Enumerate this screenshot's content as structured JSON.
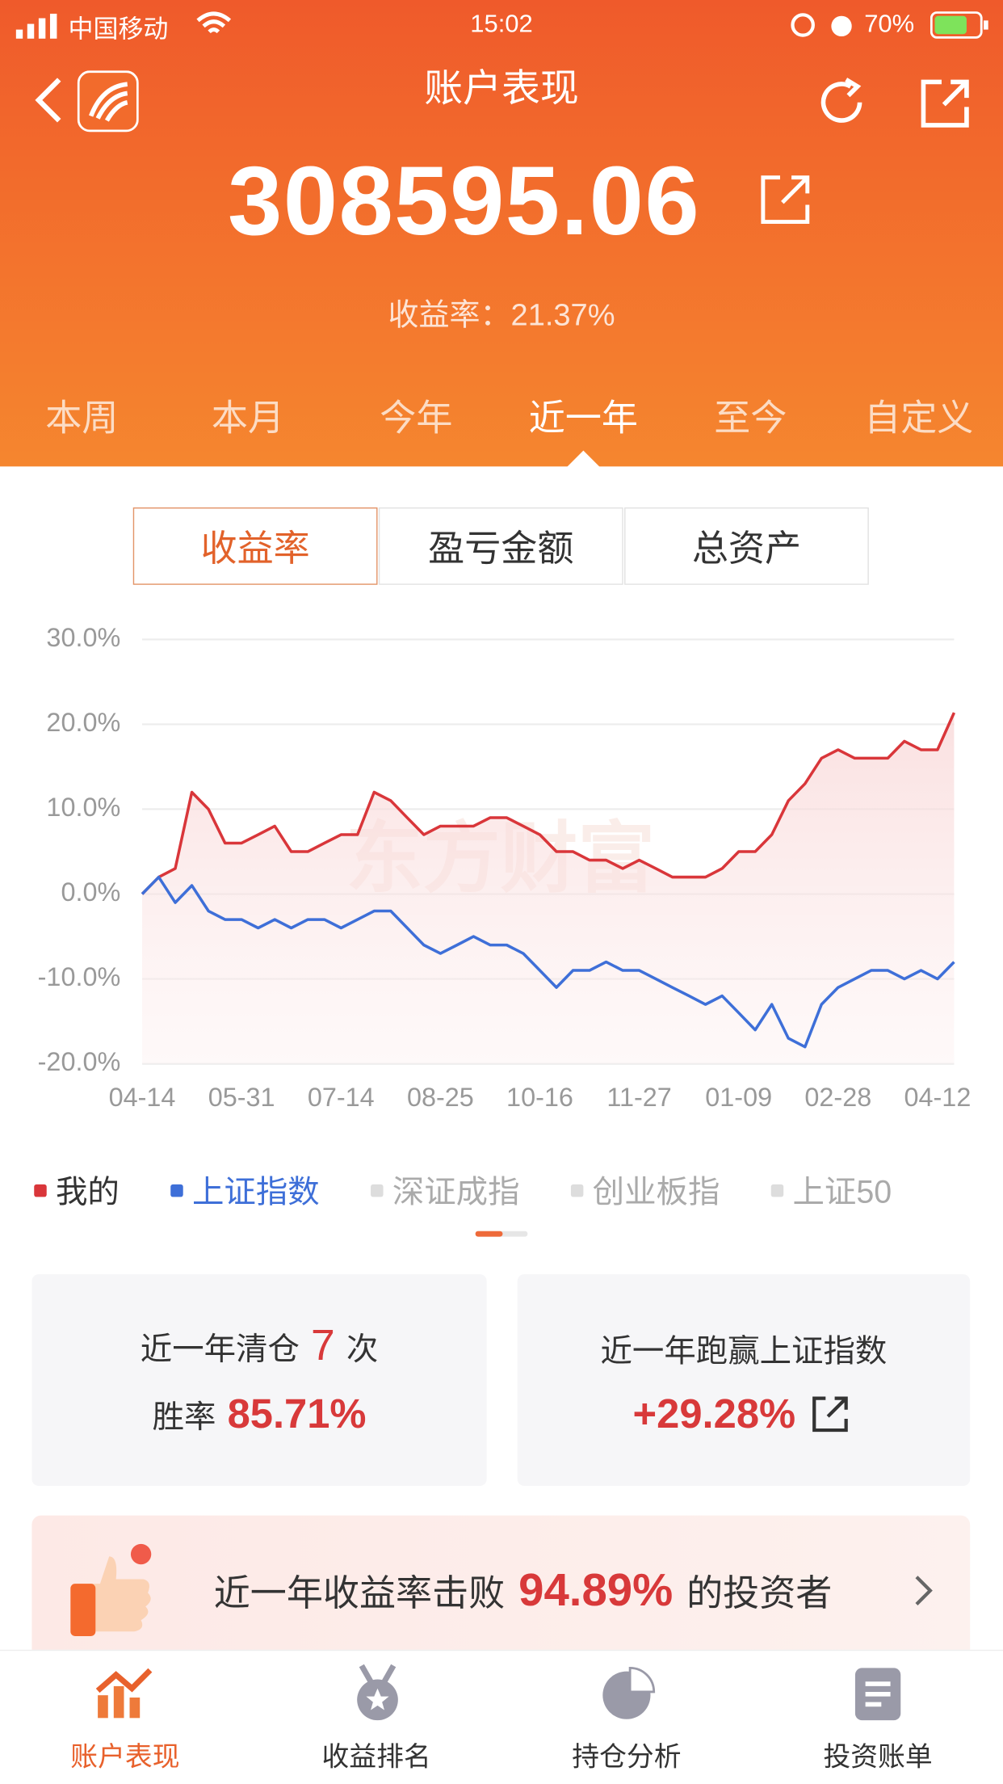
{
  "status_bar": {
    "carrier": "中国移动",
    "time": "15:02",
    "battery": "70%"
  },
  "header": {
    "title": "账户表现"
  },
  "summary": {
    "amount": "308595.06",
    "rate_label": "收益率：",
    "rate_value": "21.37%"
  },
  "period_tabs": {
    "items": [
      "本周",
      "本月",
      "今年",
      "近一年",
      "至今",
      "自定义"
    ],
    "active": "近一年"
  },
  "metric_toggle": {
    "items": [
      "收益率",
      "盈亏金额",
      "总资产"
    ],
    "active": "收益率"
  },
  "chart_data": {
    "type": "line",
    "watermark": "东方财富",
    "categories": [
      "04-14",
      null,
      null,
      null,
      null,
      null,
      "05-31",
      null,
      null,
      null,
      null,
      null,
      "07-14",
      null,
      null,
      null,
      null,
      null,
      "08-25",
      null,
      null,
      null,
      null,
      null,
      "10-16",
      null,
      null,
      null,
      null,
      null,
      "11-27",
      null,
      null,
      null,
      null,
      null,
      "01-09",
      null,
      null,
      null,
      null,
      null,
      "02-28",
      null,
      null,
      null,
      null,
      null,
      "04-12",
      null
    ],
    "series": [
      {
        "name": "我的",
        "color": "#d9363a",
        "values": [
          0,
          2,
          3,
          12,
          10,
          6,
          6,
          7,
          8,
          5,
          5,
          6,
          7,
          7,
          12,
          11,
          9,
          7,
          8,
          8,
          8,
          9,
          9,
          8,
          7,
          5,
          5,
          4,
          4,
          3,
          4,
          3,
          2,
          2,
          2,
          3,
          5,
          5,
          7,
          11,
          13,
          16,
          17,
          16,
          16,
          16,
          18,
          17,
          17,
          21.37
        ]
      },
      {
        "name": "上证指数",
        "color": "#3e6fd8",
        "values": [
          0,
          2,
          -1,
          1,
          -2,
          -3,
          -3,
          -4,
          -3,
          -4,
          -3,
          -3,
          -4,
          -3,
          -2,
          -2,
          -4,
          -6,
          -7,
          -6,
          -5,
          -6,
          -6,
          -7,
          -9,
          -11,
          -9,
          -9,
          -8,
          -9,
          -9,
          -10,
          -11,
          -12,
          -13,
          -12,
          -14,
          -16,
          -13,
          -17,
          -18,
          -13,
          -11,
          -10,
          -9,
          -9,
          -10,
          -9,
          -10,
          -8
        ]
      }
    ],
    "legend_extra": [
      "深证成指",
      "创业板指",
      "上证50"
    ],
    "ylim": [
      -20,
      30
    ],
    "yticks": [
      {
        "value": -20,
        "label": "-20.0%"
      },
      {
        "value": -10,
        "label": "-10.0%"
      },
      {
        "value": 0,
        "label": "0.0%"
      },
      {
        "value": 10,
        "label": "10.0%"
      },
      {
        "value": 20,
        "label": "20.0%"
      },
      {
        "value": 30,
        "label": "30.0%"
      }
    ],
    "grid": true
  },
  "stats": {
    "clear_label": "近一年清仓",
    "clear_count": "7",
    "clear_unit": "次",
    "win_label": "胜率",
    "win_rate": "85.71%",
    "beat_label": "近一年跑赢上证指数",
    "beat_value": "+29.28%"
  },
  "banner": {
    "prefix": "近一年收益率击败",
    "value": "94.89%",
    "suffix": "的投资者"
  },
  "bottom_nav": {
    "items": [
      "账户表现",
      "收益排名",
      "持仓分析",
      "投资账单"
    ],
    "active": "账户表现"
  }
}
